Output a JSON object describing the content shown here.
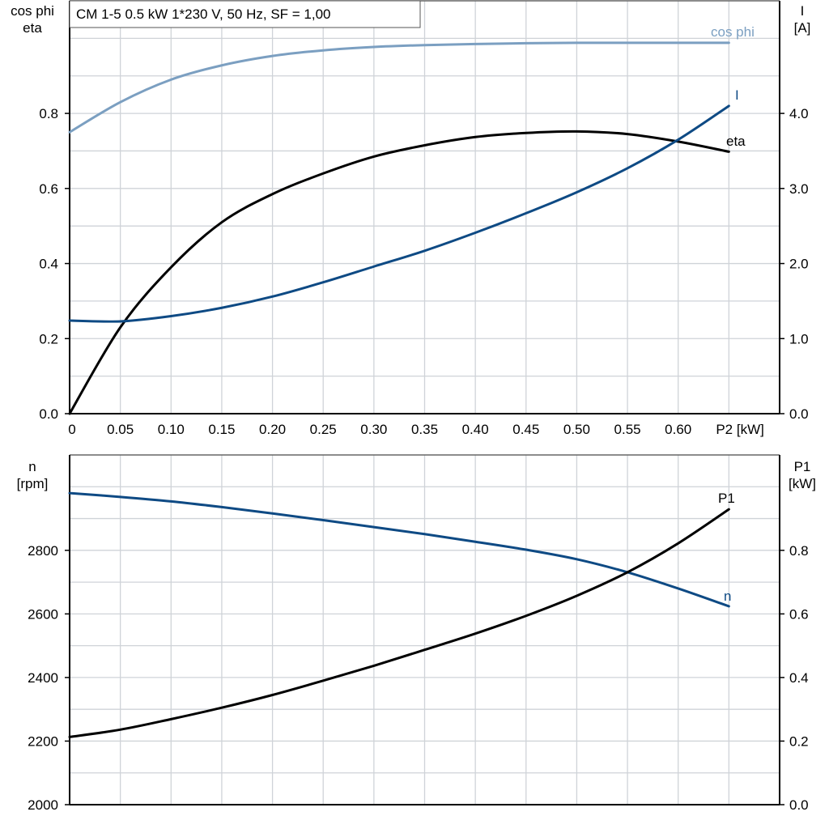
{
  "title": "CM 1-5   0.5 kW   1*230 V, 50 Hz, SF = 1,00",
  "colors": {
    "cosphi": "#7b9fc1",
    "blue": "#0e4a84",
    "black": "#000000",
    "grid": "#cfd3d8"
  },
  "chart_data": [
    {
      "type": "line",
      "x": [
        0,
        0.05,
        0.1,
        0.15,
        0.2,
        0.25,
        0.3,
        0.35,
        0.4,
        0.45,
        0.5,
        0.55,
        0.6,
        0.65
      ],
      "xlim": [
        0,
        0.7
      ],
      "xticks": [
        "0",
        "0.05",
        "0.10",
        "0.15",
        "0.20",
        "0.25",
        "0.30",
        "0.35",
        "0.40",
        "0.45",
        "0.50",
        "0.55",
        "0.60"
      ],
      "xlabel": "P2 [kW]",
      "ylabel_left": [
        "cos phi",
        "eta"
      ],
      "ylim_left": [
        0,
        1.1
      ],
      "yticks_left": [
        "0.0",
        "0.2",
        "0.4",
        "0.6",
        "0.8"
      ],
      "ylabel_right": [
        "I",
        "[A]"
      ],
      "ylim_right": [
        0,
        5.5
      ],
      "yticks_right": [
        "0.0",
        "1.0",
        "2.0",
        "3.0",
        "4.0"
      ],
      "grid": true,
      "series": [
        {
          "name": "cos phi",
          "axis": "left",
          "color": "#7b9fc1",
          "values": [
            0.75,
            0.83,
            0.89,
            0.928,
            0.953,
            0.968,
            0.977,
            0.982,
            0.985,
            0.987,
            0.988,
            0.988,
            0.988,
            0.988
          ]
        },
        {
          "name": "eta",
          "axis": "left",
          "color": "#000000",
          "values": [
            0.0,
            0.23,
            0.39,
            0.51,
            0.585,
            0.64,
            0.685,
            0.715,
            0.737,
            0.748,
            0.752,
            0.745,
            0.725,
            0.698
          ]
        },
        {
          "name": "I",
          "axis": "right",
          "color": "#0e4a84",
          "values": [
            1.24,
            1.23,
            1.3,
            1.41,
            1.56,
            1.75,
            1.96,
            2.17,
            2.41,
            2.67,
            2.95,
            3.27,
            3.65,
            4.1
          ]
        }
      ]
    },
    {
      "type": "line",
      "x": [
        0,
        0.05,
        0.1,
        0.15,
        0.2,
        0.25,
        0.3,
        0.35,
        0.4,
        0.45,
        0.5,
        0.55,
        0.6,
        0.65
      ],
      "xlim": [
        0,
        0.7
      ],
      "ylabel_left": [
        "n",
        "[rpm]"
      ],
      "ylim_left": [
        2000,
        3100
      ],
      "yticks_left": [
        "2000",
        "2200",
        "2400",
        "2600",
        "2800"
      ],
      "ylabel_right": [
        "P1",
        "[kW]"
      ],
      "ylim_right": [
        0,
        1.1
      ],
      "yticks_right": [
        "0.0",
        "0.2",
        "0.4",
        "0.6",
        "0.8"
      ],
      "grid": true,
      "series": [
        {
          "name": "n",
          "axis": "left",
          "color": "#0e4a84",
          "values": [
            2980,
            2968,
            2954,
            2936,
            2916,
            2895,
            2873,
            2851,
            2827,
            2802,
            2772,
            2731,
            2680,
            2624
          ]
        },
        {
          "name": "P1",
          "axis": "right",
          "color": "#000000",
          "values": [
            0.213,
            0.236,
            0.269,
            0.305,
            0.345,
            0.39,
            0.437,
            0.487,
            0.538,
            0.594,
            0.657,
            0.731,
            0.822,
            0.929
          ]
        }
      ]
    }
  ]
}
